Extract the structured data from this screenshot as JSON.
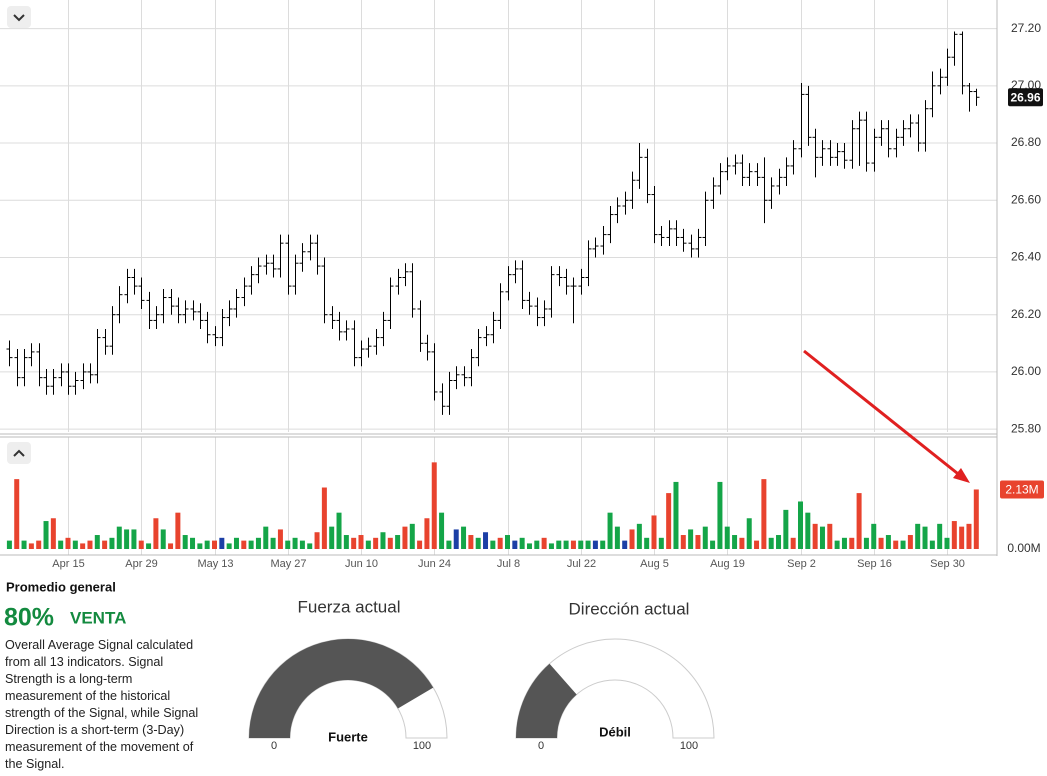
{
  "chart_data": [
    {
      "type": "ohlc",
      "color": "#000000",
      "grid": true,
      "ylim": [
        25.79,
        27.3
      ],
      "yticks": [
        {
          "value": 25.8,
          "label": "25.80"
        },
        {
          "value": 26.0,
          "label": "26.00"
        },
        {
          "value": 26.2,
          "label": "26.20"
        },
        {
          "value": 26.4,
          "label": "26.40"
        },
        {
          "value": 26.6,
          "label": "26.60"
        },
        {
          "value": 26.8,
          "label": "26.80"
        },
        {
          "value": 27.0,
          "label": "27.00"
        },
        {
          "value": 27.2,
          "label": "27.20"
        }
      ],
      "last_value": 26.96,
      "open": [
        26.08,
        26.05,
        25.98,
        26.05,
        26.07,
        25.98,
        25.95,
        25.98,
        26.0,
        25.95,
        25.97,
        26.0,
        25.99,
        26.12,
        26.09,
        26.2,
        26.27,
        26.33,
        26.3,
        26.25,
        26.18,
        26.2,
        26.26,
        26.23,
        26.2,
        26.22,
        26.21,
        26.18,
        26.13,
        26.12,
        26.19,
        26.22,
        26.26,
        26.3,
        26.34,
        26.37,
        26.38,
        26.36,
        26.45,
        26.3,
        26.38,
        26.42,
        26.45,
        26.37,
        26.2,
        26.18,
        26.14,
        26.15,
        26.05,
        26.08,
        26.09,
        26.12,
        26.18,
        26.3,
        26.33,
        26.35,
        26.22,
        26.1,
        26.07,
        25.93,
        25.88,
        25.97,
        25.99,
        25.98,
        26.05,
        26.12,
        26.13,
        26.18,
        26.28,
        26.34,
        26.36,
        26.25,
        26.23,
        26.19,
        26.22,
        26.34,
        26.33,
        26.3,
        26.3,
        26.33,
        26.43,
        26.44,
        26.48,
        26.55,
        26.58,
        26.6,
        26.67,
        26.75,
        26.62,
        26.48,
        26.47,
        26.5,
        26.47,
        26.45,
        26.43,
        26.47,
        26.6,
        26.65,
        26.7,
        26.72,
        26.73,
        26.68,
        26.7,
        26.68,
        26.6,
        26.65,
        26.68,
        26.72,
        26.78,
        26.97,
        26.82,
        26.75,
        26.78,
        26.75,
        26.77,
        26.74,
        26.85,
        26.88,
        26.73,
        26.82,
        26.85,
        26.78,
        26.82,
        26.85,
        26.87,
        26.8,
        26.92,
        27.0,
        27.03,
        27.1,
        27.18,
        27.0,
        26.98
      ],
      "high": [
        26.11,
        26.08,
        26.08,
        26.1,
        26.1,
        26.01,
        26.01,
        26.03,
        26.03,
        26.0,
        26.03,
        26.03,
        26.15,
        26.15,
        26.23,
        26.3,
        26.36,
        26.36,
        26.33,
        26.28,
        26.23,
        26.29,
        26.29,
        26.26,
        26.25,
        26.25,
        26.24,
        26.21,
        26.16,
        26.22,
        26.25,
        26.29,
        26.33,
        26.37,
        26.4,
        26.41,
        26.41,
        26.48,
        26.48,
        26.41,
        26.45,
        26.48,
        26.48,
        26.4,
        26.23,
        26.21,
        26.18,
        26.18,
        26.11,
        26.12,
        26.15,
        26.21,
        26.33,
        26.36,
        26.38,
        26.38,
        26.25,
        26.13,
        26.1,
        25.96,
        26.0,
        26.02,
        26.02,
        26.08,
        26.15,
        26.16,
        26.21,
        26.31,
        26.37,
        26.39,
        26.39,
        26.28,
        26.26,
        26.25,
        26.37,
        26.37,
        26.36,
        26.33,
        26.36,
        26.46,
        26.47,
        26.51,
        26.58,
        26.61,
        26.63,
        26.7,
        26.8,
        26.78,
        26.65,
        26.51,
        26.53,
        26.53,
        26.5,
        26.48,
        26.5,
        26.63,
        26.68,
        26.73,
        26.75,
        26.76,
        26.76,
        26.73,
        26.73,
        26.75,
        26.68,
        26.71,
        26.75,
        26.81,
        27.01,
        27.0,
        26.85,
        26.81,
        26.81,
        26.8,
        26.8,
        26.88,
        26.91,
        26.91,
        26.85,
        26.88,
        26.88,
        26.85,
        26.88,
        26.9,
        26.9,
        26.95,
        27.05,
        27.06,
        27.13,
        27.19,
        27.19,
        27.01,
        26.99
      ],
      "low": [
        26.02,
        25.95,
        25.95,
        26.02,
        25.95,
        25.92,
        25.92,
        25.95,
        25.92,
        25.92,
        25.94,
        25.96,
        25.96,
        26.06,
        26.06,
        26.17,
        26.24,
        26.27,
        26.22,
        26.15,
        26.15,
        26.17,
        26.2,
        26.17,
        26.17,
        26.18,
        26.15,
        26.1,
        26.09,
        26.09,
        26.16,
        26.19,
        26.23,
        26.27,
        26.31,
        26.34,
        26.33,
        26.33,
        26.27,
        26.27,
        26.35,
        26.39,
        26.34,
        26.17,
        26.15,
        26.11,
        26.11,
        26.02,
        26.02,
        26.05,
        26.06,
        26.09,
        26.15,
        26.27,
        26.3,
        26.19,
        26.07,
        26.04,
        25.9,
        25.85,
        25.85,
        25.94,
        25.95,
        25.95,
        26.02,
        26.09,
        26.1,
        26.15,
        26.25,
        26.31,
        26.22,
        26.2,
        26.16,
        26.16,
        26.19,
        26.3,
        26.27,
        26.17,
        26.27,
        26.3,
        26.4,
        26.41,
        26.45,
        26.52,
        26.55,
        26.57,
        26.64,
        26.59,
        26.45,
        26.44,
        26.44,
        26.44,
        26.42,
        26.4,
        26.4,
        26.44,
        26.57,
        26.62,
        26.67,
        26.69,
        26.65,
        26.65,
        26.65,
        26.52,
        26.57,
        26.62,
        26.65,
        26.69,
        26.75,
        26.79,
        26.68,
        26.72,
        26.72,
        26.72,
        26.71,
        26.71,
        26.72,
        26.7,
        26.7,
        26.79,
        26.75,
        26.75,
        26.79,
        26.82,
        26.77,
        26.77,
        26.89,
        26.97,
        27.0,
        27.07,
        26.97,
        26.91,
        26.93
      ],
      "close": [
        26.05,
        25.98,
        26.05,
        26.07,
        25.98,
        25.95,
        25.98,
        26.0,
        25.95,
        25.97,
        26.0,
        25.99,
        26.12,
        26.09,
        26.2,
        26.27,
        26.33,
        26.3,
        26.25,
        26.18,
        26.2,
        26.26,
        26.23,
        26.2,
        26.22,
        26.21,
        26.18,
        26.13,
        26.12,
        26.19,
        26.22,
        26.26,
        26.3,
        26.34,
        26.37,
        26.38,
        26.36,
        26.45,
        26.3,
        26.38,
        26.42,
        26.45,
        26.37,
        26.2,
        26.18,
        26.14,
        26.15,
        26.05,
        26.08,
        26.09,
        26.12,
        26.18,
        26.3,
        26.33,
        26.35,
        26.22,
        26.1,
        26.07,
        25.93,
        25.88,
        25.97,
        25.99,
        25.98,
        26.05,
        26.12,
        26.13,
        26.18,
        26.28,
        26.34,
        26.36,
        26.25,
        26.23,
        26.19,
        26.22,
        26.34,
        26.33,
        26.3,
        26.3,
        26.33,
        26.43,
        26.44,
        26.48,
        26.55,
        26.58,
        26.6,
        26.67,
        26.75,
        26.62,
        26.48,
        26.47,
        26.5,
        26.47,
        26.45,
        26.43,
        26.47,
        26.6,
        26.65,
        26.7,
        26.72,
        26.73,
        26.68,
        26.7,
        26.68,
        26.6,
        26.65,
        26.68,
        26.72,
        26.78,
        26.97,
        26.82,
        26.75,
        26.78,
        26.75,
        26.77,
        26.74,
        26.85,
        26.88,
        26.73,
        26.82,
        26.85,
        26.78,
        26.82,
        26.85,
        26.87,
        26.8,
        26.92,
        27.0,
        27.03,
        27.1,
        27.18,
        27.0,
        26.98,
        26.96
      ]
    },
    {
      "type": "bar",
      "grid": true,
      "ylim": [
        0,
        3.9
      ],
      "yticks": [
        {
          "value": 0,
          "label": "0.00M"
        }
      ],
      "last_value_label": {
        "value": 2.13,
        "label": "2.13M"
      },
      "categories": [
        null,
        null,
        null,
        null,
        null,
        null,
        null,
        null,
        "Apr 15",
        null,
        null,
        null,
        null,
        null,
        null,
        null,
        null,
        null,
        "Apr 29",
        null,
        null,
        null,
        null,
        null,
        null,
        null,
        null,
        null,
        "May 13",
        null,
        null,
        null,
        null,
        null,
        null,
        null,
        null,
        null,
        "May 27",
        null,
        null,
        null,
        null,
        null,
        null,
        null,
        null,
        null,
        "Jun 10",
        null,
        null,
        null,
        null,
        null,
        null,
        null,
        null,
        null,
        "Jun 24",
        null,
        null,
        null,
        null,
        null,
        null,
        null,
        null,
        null,
        "Jul 8",
        null,
        null,
        null,
        null,
        null,
        null,
        null,
        null,
        null,
        "Jul 22",
        null,
        null,
        null,
        null,
        null,
        null,
        null,
        null,
        null,
        "Aug 5",
        null,
        null,
        null,
        null,
        null,
        null,
        null,
        null,
        null,
        "Aug 19",
        null,
        null,
        null,
        null,
        null,
        null,
        null,
        null,
        null,
        "Sep 2",
        null,
        null,
        null,
        null,
        null,
        null,
        null,
        null,
        null,
        "Sep 16",
        null,
        null,
        null,
        null,
        null,
        null,
        null,
        null,
        null,
        "Sep 30",
        null,
        null,
        null,
        null
      ],
      "values": [
        0.3,
        2.5,
        0.3,
        0.2,
        0.3,
        1.0,
        1.1,
        0.3,
        0.4,
        0.3,
        0.2,
        0.3,
        0.5,
        0.3,
        0.4,
        0.8,
        0.7,
        0.7,
        0.3,
        0.2,
        1.1,
        0.7,
        0.2,
        1.3,
        0.5,
        0.4,
        0.2,
        0.3,
        0.3,
        0.4,
        0.2,
        0.4,
        0.3,
        0.3,
        0.4,
        0.8,
        0.4,
        0.7,
        0.3,
        0.4,
        0.3,
        0.2,
        0.6,
        2.2,
        0.8,
        1.3,
        0.5,
        0.4,
        0.5,
        0.3,
        0.4,
        0.6,
        0.4,
        0.5,
        0.8,
        0.9,
        0.3,
        1.1,
        3.1,
        1.3,
        0.3,
        0.7,
        0.8,
        0.5,
        0.4,
        0.6,
        0.3,
        0.4,
        0.5,
        0.3,
        0.4,
        0.2,
        0.3,
        0.4,
        0.2,
        0.3,
        0.3,
        0.3,
        0.3,
        0.3,
        0.3,
        0.3,
        1.3,
        0.8,
        0.3,
        0.7,
        0.9,
        0.4,
        1.2,
        0.4,
        2.0,
        2.4,
        0.5,
        0.7,
        0.5,
        0.8,
        0.3,
        2.4,
        0.8,
        0.5,
        0.4,
        1.1,
        0.3,
        2.5,
        0.4,
        0.5,
        1.4,
        0.4,
        1.7,
        1.3,
        0.9,
        0.8,
        0.9,
        0.3,
        0.4,
        0.4,
        2.0,
        0.4,
        0.9,
        0.4,
        0.5,
        0.3,
        0.3,
        0.5,
        0.9,
        0.8,
        0.3,
        0.9,
        0.4,
        1.0,
        0.8,
        0.9,
        2.13
      ],
      "colors": [
        "#14a548",
        "#e8432e",
        "#14a548",
        "#e8432e",
        "#e8432e",
        "#14a548",
        "#e8432e",
        "#14a548",
        "#e8432e",
        "#14a548",
        "#e8432e",
        "#e8432e",
        "#14a548",
        "#e8432e",
        "#14a548",
        "#14a548",
        "#14a548",
        "#14a548",
        "#e8432e",
        "#14a548",
        "#e8432e",
        "#14a548",
        "#e8432e",
        "#e8432e",
        "#14a548",
        "#14a548",
        "#14a548",
        "#14a548",
        "#e8432e",
        "#1c3fa6",
        "#14a548",
        "#14a548",
        "#e8432e",
        "#14a548",
        "#14a548",
        "#14a548",
        "#14a548",
        "#e8432e",
        "#14a548",
        "#14a548",
        "#14a548",
        "#14a548",
        "#e8432e",
        "#e8432e",
        "#14a548",
        "#14a548",
        "#14a548",
        "#e8432e",
        "#e8432e",
        "#14a548",
        "#e8432e",
        "#14a548",
        "#e8432e",
        "#14a548",
        "#e8432e",
        "#14a548",
        "#e8432e",
        "#e8432e",
        "#e8432e",
        "#14a548",
        "#14a548",
        "#1c3fa6",
        "#14a548",
        "#e8432e",
        "#14a548",
        "#1c3fa6",
        "#14a548",
        "#e8432e",
        "#14a548",
        "#1c3fa6",
        "#14a548",
        "#14a548",
        "#14a548",
        "#e8432e",
        "#14a548",
        "#14a548",
        "#14a548",
        "#e8432e",
        "#14a548",
        "#14a548",
        "#1c3fa6",
        "#14a548",
        "#14a548",
        "#14a548",
        "#1c3fa6",
        "#e8432e",
        "#14a548",
        "#14a548",
        "#e8432e",
        "#14a548",
        "#e8432e",
        "#14a548",
        "#e8432e",
        "#14a548",
        "#e8432e",
        "#14a548",
        "#14a548",
        "#14a548",
        "#14a548",
        "#14a548",
        "#e8432e",
        "#14a548",
        "#e8432e",
        "#e8432e",
        "#14a548",
        "#14a548",
        "#14a548",
        "#e8432e",
        "#14a548",
        "#14a548",
        "#e8432e",
        "#14a548",
        "#e8432e",
        "#14a548",
        "#14a548",
        "#e8432e",
        "#e8432e",
        "#14a548",
        "#14a548",
        "#e8432e",
        "#14a548",
        "#e8432e",
        "#14a548",
        "#e8432e",
        "#14a548",
        "#14a548",
        "#14a548",
        "#14a548",
        "#14a548",
        "#e8432e",
        "#e8432e",
        "#e8432e",
        "#e8432e"
      ]
    }
  ],
  "summary": {
    "title": "Promedio general",
    "percent": "80%",
    "signal": "VENTA",
    "description": "Overall Average Signal calculated from all 13 indicators. Signal Strength is a long-term measurement of the historical strength of the Signal, while Signal Direction is a short-term (3-Day) measurement of the movement of the Signal."
  },
  "gauges": [
    {
      "title": "Fuerza actual",
      "reading": "Fuerte",
      "min": 0,
      "max": 100,
      "value": 83
    },
    {
      "title": "Dirección actual",
      "reading": "Débil",
      "min": 0,
      "max": 100,
      "value": 27
    }
  ]
}
